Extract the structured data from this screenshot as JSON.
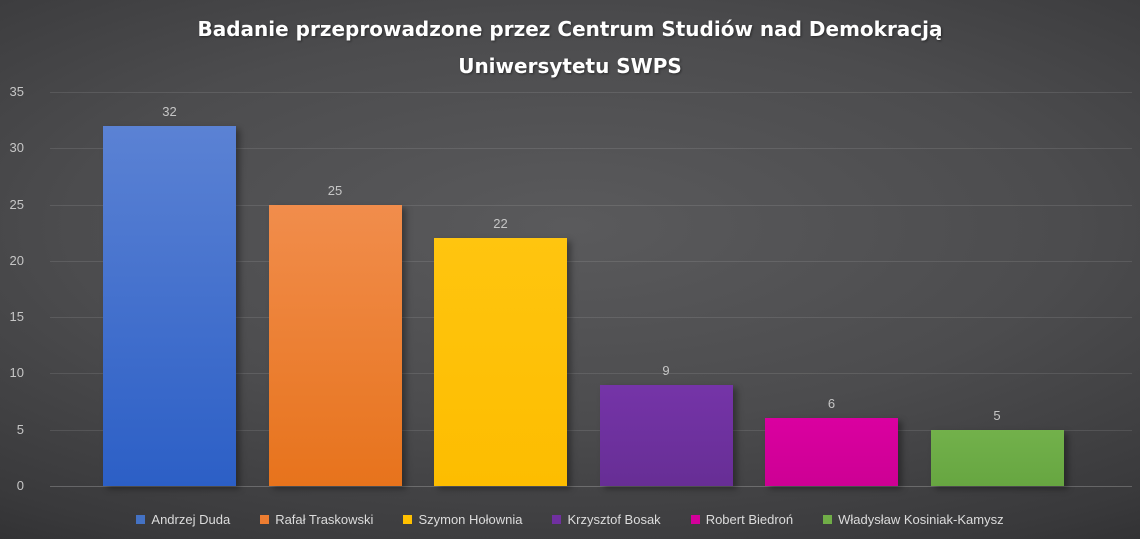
{
  "chart_data": {
    "type": "bar",
    "title": "Badanie przeprowadzone przez Centrum Studiów nad Demokracją Uniwersytetu SWPS",
    "title_lines": [
      "Badanie przeprowadzone przez Centrum Studiów nad Demokracją",
      "Uniwersytetu SWPS"
    ],
    "categories": [
      "Andrzej Duda",
      "Rafał Traskowski",
      "Szymon Hołownia",
      "Krzysztof Bosak",
      "Robert Biedroń",
      "Władysław Kosiniak-Kamysz"
    ],
    "values": [
      32,
      25,
      22,
      9,
      6,
      5
    ],
    "xlabel": "",
    "ylabel": "",
    "ylim": [
      0,
      35
    ],
    "y_ticks": [
      0,
      5,
      10,
      15,
      20,
      25,
      30,
      35
    ],
    "grid": true,
    "legend_position": "bottom",
    "colors": [
      "#4472c4",
      "#ed7d31",
      "#ffc000",
      "#7030a0",
      "#d3009b",
      "#70ad47"
    ],
    "gradients": [
      [
        "#5b82d4",
        "#2c5fc6"
      ],
      [
        "#f18d4c",
        "#e7731c"
      ],
      [
        "#ffc50f",
        "#fdbd00"
      ],
      [
        "#7534a8",
        "#672e95"
      ],
      [
        "#da00a0",
        "#cd0094"
      ],
      [
        "#72b14b",
        "#67a641"
      ]
    ],
    "value_label_color": "#c6c6c6",
    "tick_label_color": "#c6c6c6",
    "legend_text_color": "#dcdcdc",
    "title_color": "#ffffff"
  }
}
